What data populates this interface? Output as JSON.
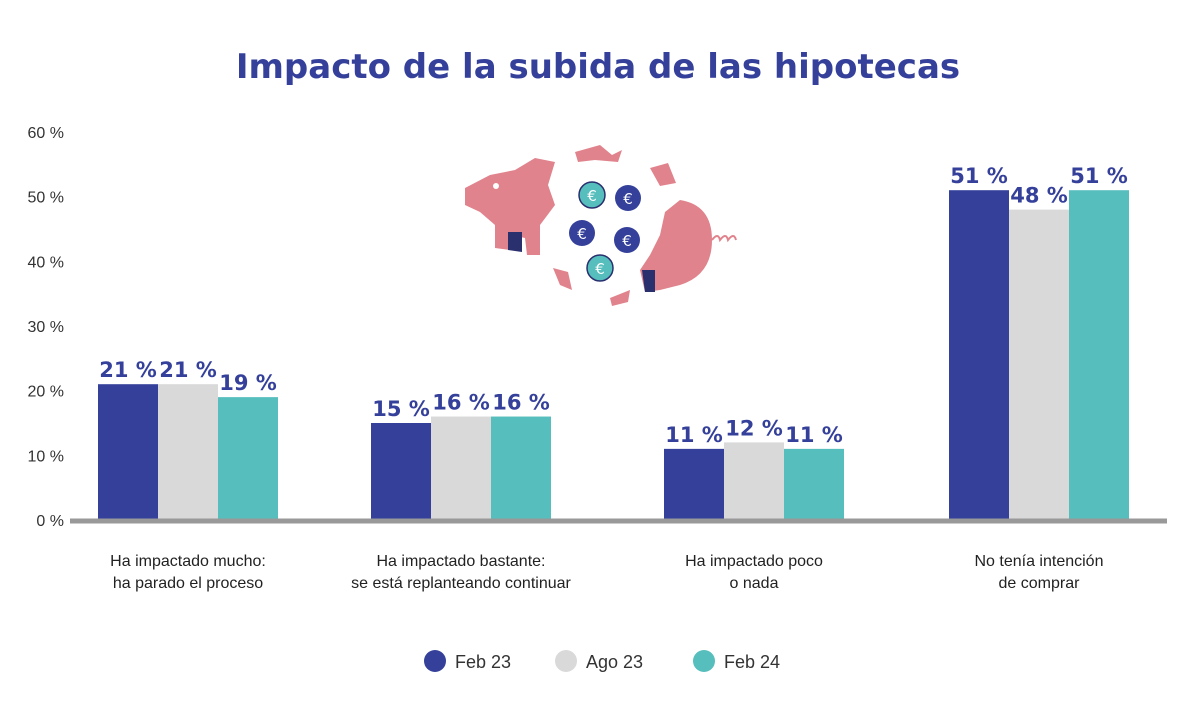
{
  "chart_data": {
    "type": "bar",
    "title": "Impacto de la subida de las hipotecas",
    "categories": [
      [
        "Ha impactado mucho:",
        "ha parado el proceso"
      ],
      [
        "Ha impactado bastante:",
        "se está replanteando continuar"
      ],
      [
        "Ha impactado poco",
        "o nada"
      ],
      [
        "No tenía intención",
        "de comprar"
      ]
    ],
    "series": [
      {
        "name": "Feb 23",
        "color": "#34409a",
        "values": [
          21,
          15,
          11,
          51
        ],
        "labels": [
          "21 %",
          "15 %",
          "11 %",
          "51 %"
        ]
      },
      {
        "name": "Ago 23",
        "color": "#d9d9d9",
        "values": [
          21,
          16,
          12,
          48
        ],
        "labels": [
          "21 %",
          "16 %",
          "12 %",
          "48 %"
        ]
      },
      {
        "name": "Feb 24",
        "color": "#56bebd",
        "values": [
          19,
          16,
          11,
          51
        ],
        "labels": [
          "19 %",
          "16 %",
          "11 %",
          "51 %"
        ]
      }
    ],
    "yticks": [
      "0 %",
      "10 %",
      "20 %",
      "30 %",
      "40 %",
      "50 %",
      "60 %"
    ],
    "ylim": [
      0,
      60
    ],
    "grid": false,
    "legend": "bottom",
    "axis_color": "#999999",
    "title_color": "#34409a",
    "illustration": "broken-piggy-bank-with-euro-coins"
  }
}
